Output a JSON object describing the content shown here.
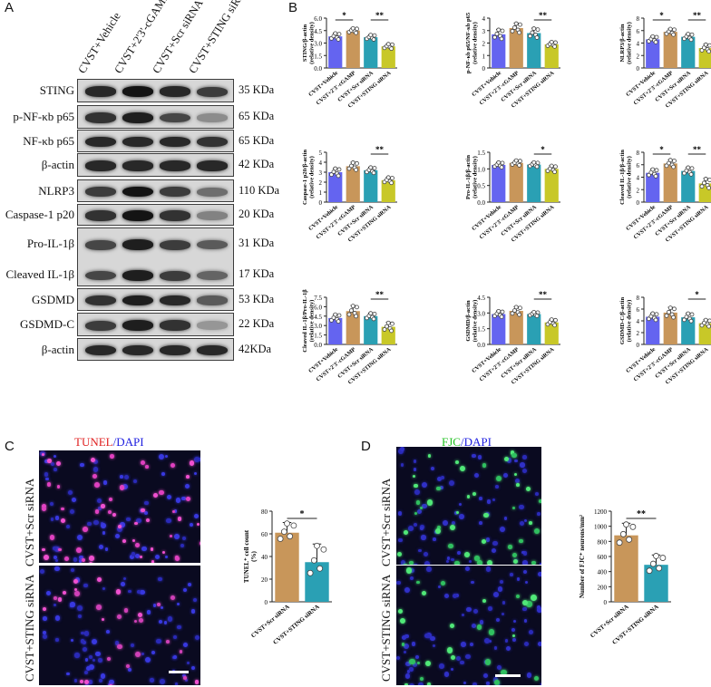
{
  "panels": {
    "A": "A",
    "B": "B",
    "C": "C",
    "D": "D"
  },
  "blot": {
    "groups": [
      "CVST+Vehicle",
      "CVST+2'3'-cGAMP",
      "CVST+Scr siRNA",
      "CVST+STING siRNA"
    ],
    "rows": [
      {
        "label": "STING",
        "kda": "35 KDa",
        "intensity": [
          0.85,
          0.95,
          0.85,
          0.75
        ]
      },
      {
        "label": "p-NF-κb p65",
        "kda": "65 KDa",
        "intensity": [
          0.8,
          0.9,
          0.7,
          0.35
        ]
      },
      {
        "label": "NF-κb p65",
        "kda": "65 KDa",
        "intensity": [
          0.85,
          0.85,
          0.85,
          0.8
        ]
      },
      {
        "label": "β-actin",
        "kda": "42  KDa",
        "intensity": [
          0.85,
          0.85,
          0.85,
          0.85
        ]
      },
      {
        "label": "NLRP3",
        "kda": "110 KDa",
        "intensity": [
          0.75,
          0.95,
          0.75,
          0.5
        ]
      },
      {
        "label": "Caspase-1 p20",
        "kda": "20 KDa",
        "intensity": [
          0.8,
          0.95,
          0.8,
          0.4
        ]
      },
      {
        "label": "Pro-IL-1β",
        "kda": "31 KDa",
        "intensity": [
          0.7,
          0.9,
          0.75,
          0.6
        ]
      },
      {
        "label": "Cleaved IL-1β",
        "kda": "17 KDa",
        "intensity": [
          0.7,
          0.9,
          0.75,
          0.55
        ]
      },
      {
        "label": "GSDMD",
        "kda": "53 KDa",
        "intensity": [
          0.8,
          0.9,
          0.85,
          0.6
        ]
      },
      {
        "label": "GSDMD-C",
        "kda": "22 KDa",
        "intensity": [
          0.75,
          0.9,
          0.8,
          0.3
        ]
      },
      {
        "label": "β-actin",
        "kda": "42KDa",
        "intensity": [
          0.85,
          0.85,
          0.85,
          0.85
        ]
      }
    ]
  },
  "chart_data": [
    {
      "type": "bar",
      "ylabel": "STING/β-actin (relative density)",
      "categories": [
        "CVST+Vehicle",
        "CVST+2'3'-cGAMP",
        "CVST+Scr siRNA",
        "CVST+STING siRNA"
      ],
      "values": [
        3.8,
        4.5,
        3.7,
        2.6
      ],
      "errors": [
        0.4,
        0.3,
        0.3,
        0.3
      ],
      "ylim": [
        0,
        6
      ],
      "yticks": [
        "0.0",
        "1.5",
        "3.0",
        "4.5",
        "6.0"
      ],
      "sig": [
        {
          "from": 0,
          "to": 1,
          "label": "*"
        },
        {
          "from": 2,
          "to": 3,
          "label": "**"
        }
      ]
    },
    {
      "type": "bar",
      "ylabel": "p-NF-κb p65/NF-κb p65 (relative density)",
      "categories": [
        "CVST+Vehicle",
        "CVST+2'3'-cGAMP",
        "CVST+Scr siRNA",
        "CVST+STING siRNA"
      ],
      "values": [
        2.7,
        3.2,
        2.8,
        1.9
      ],
      "errors": [
        0.4,
        0.4,
        0.4,
        0.2
      ],
      "ylim": [
        0,
        4
      ],
      "yticks": [
        "0",
        "1",
        "2",
        "3",
        "4"
      ],
      "sig": [
        {
          "from": 2,
          "to": 3,
          "label": "**"
        }
      ]
    },
    {
      "type": "bar",
      "ylabel": "NLRP3/β-actin (relative density)",
      "categories": [
        "CVST+Vehicle",
        "CVST+2'3'-cGAMP",
        "CVST+Scr siRNA",
        "CVST+STING siRNA"
      ],
      "values": [
        4.6,
        5.8,
        5.0,
        3.2
      ],
      "errors": [
        0.5,
        0.5,
        0.5,
        0.6
      ],
      "ylim": [
        0,
        8
      ],
      "yticks": [
        "0",
        "2",
        "4",
        "6",
        "8"
      ],
      "sig": [
        {
          "from": 0,
          "to": 1,
          "label": "*"
        },
        {
          "from": 2,
          "to": 3,
          "label": "**"
        }
      ]
    },
    {
      "type": "bar",
      "ylabel": "Caspase-1 p20/β-actin (relative density)",
      "categories": [
        "CVST+Vehicle",
        "CVST+2'3'-cGAMP",
        "CVST+Scr siRNA",
        "CVST+STING siRNA"
      ],
      "values": [
        3.0,
        3.6,
        3.2,
        2.2
      ],
      "errors": [
        0.4,
        0.4,
        0.3,
        0.3
      ],
      "ylim": [
        0,
        5
      ],
      "yticks": [
        "0",
        "1",
        "2",
        "3",
        "4",
        "5"
      ],
      "sig": [
        {
          "from": 2,
          "to": 3,
          "label": "**"
        }
      ]
    },
    {
      "type": "bar",
      "ylabel": "Pro-IL-1β/β-actin (relative density)",
      "categories": [
        "CVST+Vehicle",
        "CVST+2'3'-cGAMP",
        "CVST+Scr siRNA",
        "CVST+STING siRNA"
      ],
      "values": [
        1.12,
        1.18,
        1.13,
        1.0
      ],
      "errors": [
        0.08,
        0.08,
        0.07,
        0.1
      ],
      "ylim": [
        0,
        1.5
      ],
      "yticks": [
        "0.0",
        "0.5",
        "1.0",
        "1.5"
      ],
      "sig": [
        {
          "from": 2,
          "to": 3,
          "label": "*"
        }
      ]
    },
    {
      "type": "bar",
      "ylabel": "Cleaved IL-1β/β-actin (relative density)",
      "categories": [
        "CVST+Vehicle",
        "CVST+2'3'-cGAMP",
        "CVST+Scr siRNA",
        "CVST+STING siRNA"
      ],
      "values": [
        4.7,
        6.2,
        5.0,
        3.0
      ],
      "errors": [
        0.6,
        0.6,
        0.6,
        0.8
      ],
      "ylim": [
        0,
        8
      ],
      "yticks": [
        "0",
        "2",
        "4",
        "6",
        "8"
      ],
      "sig": [
        {
          "from": 0,
          "to": 1,
          "label": "*"
        },
        {
          "from": 2,
          "to": 3,
          "label": "**"
        }
      ]
    },
    {
      "type": "bar",
      "ylabel": "Cleaved IL-1β/Pro-IL-1β (relative density)",
      "categories": [
        "CVST+Vehicle",
        "CVST+2'3'-cGAMP",
        "CVST+Scr siRNA",
        "CVST+STING siRNA"
      ],
      "values": [
        4.2,
        5.3,
        4.5,
        2.8
      ],
      "errors": [
        0.6,
        0.9,
        0.5,
        0.7
      ],
      "ylim": [
        0,
        7.5
      ],
      "yticks": [
        "0.0",
        "1.5",
        "3.0",
        "4.5",
        "6.0",
        "7.5"
      ],
      "sig": [
        {
          "from": 2,
          "to": 3,
          "label": "**"
        }
      ]
    },
    {
      "type": "bar",
      "ylabel": "GSDMD/β-actin (relative density)",
      "categories": [
        "CVST+Vehicle",
        "CVST+2'3'-cGAMP",
        "CVST+Scr siRNA",
        "CVST+STING siRNA"
      ],
      "values": [
        2.9,
        3.2,
        2.9,
        2.1
      ],
      "errors": [
        0.3,
        0.4,
        0.2,
        0.3
      ],
      "ylim": [
        0,
        4.5
      ],
      "yticks": [
        "0.0",
        "1.5",
        "3.0",
        "4.5"
      ],
      "sig": [
        {
          "from": 2,
          "to": 3,
          "label": "**"
        }
      ]
    },
    {
      "type": "bar",
      "ylabel": "GSDMD-C/β-actin (relative density)",
      "categories": [
        "CVST+Vehicle",
        "CVST+2'3'-cGAMP",
        "CVST+Scr siRNA",
        "CVST+STING siRNA"
      ],
      "values": [
        4.7,
        5.4,
        4.6,
        3.6
      ],
      "errors": [
        0.6,
        0.9,
        0.7,
        0.6
      ],
      "ylim": [
        0,
        8
      ],
      "yticks": [
        "0",
        "2",
        "4",
        "6",
        "8"
      ],
      "sig": [
        {
          "from": 2,
          "to": 3,
          "label": "*"
        }
      ]
    },
    {
      "type": "bar",
      "ylabel": "TUNEL⁺ cell count (%)",
      "categories": [
        "CVST+Scr siRNA",
        "CVST+STING siRNA"
      ],
      "values": [
        61,
        35
      ],
      "errors": [
        9,
        16
      ],
      "ylim": [
        0,
        80
      ],
      "yticks": [
        "0",
        "20",
        "40",
        "60",
        "80"
      ],
      "sig": [
        {
          "from": 0,
          "to": 1,
          "label": "*"
        }
      ]
    },
    {
      "type": "bar",
      "ylabel": "Number of FJC⁺ neurons/mm²",
      "categories": [
        "CVST+Scr siRNA",
        "CVST+STING siRNA"
      ],
      "values": [
        880,
        490
      ],
      "errors": [
        160,
        130
      ],
      "ylim": [
        0,
        1200
      ],
      "yticks": [
        "0",
        "200",
        "400",
        "600",
        "800",
        "1000",
        "1200"
      ],
      "sig": [
        {
          "from": 0,
          "to": 1,
          "label": "**"
        }
      ]
    }
  ],
  "colors": {
    "vehicle": "#6464f0",
    "cgamp": "#c8965a",
    "scr": "#2aa0b4",
    "sting": "#c8c828"
  },
  "micrographs": {
    "C": {
      "title_a": "TUNEL",
      "title_sep": "/",
      "title_b": "DAPI",
      "top_label": "CVST+Scr siRNA",
      "bottom_label": "CVST+STING siRNA"
    },
    "D": {
      "title_a": "FJC",
      "title_sep": "/",
      "title_b": "DAPI",
      "top_label": "CVST+Scr siRNA",
      "bottom_label": "CVST+STING siRNA"
    }
  }
}
